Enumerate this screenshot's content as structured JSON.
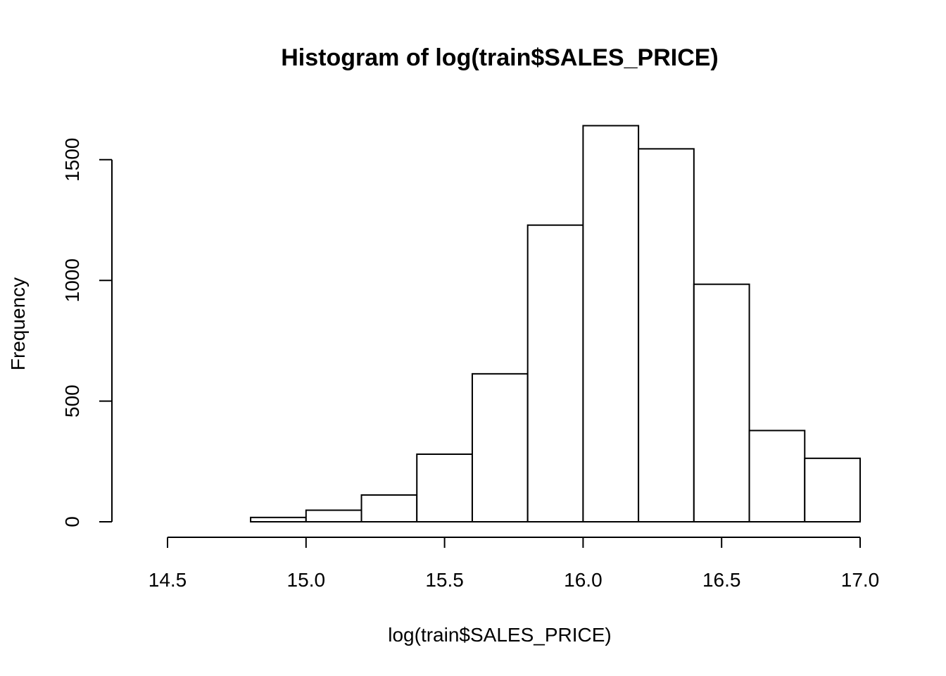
{
  "chart_data": {
    "type": "bar",
    "title": "Histogram of log(train$SALES_PRICE)",
    "xlabel": "log(train$SALES_PRICE)",
    "ylabel": "Frequency",
    "xlim": [
      14.4,
      17.0
    ],
    "ylim": [
      0,
      1640
    ],
    "x_ticks": [
      14.5,
      15.0,
      15.5,
      16.0,
      16.5,
      17.0
    ],
    "x_tick_labels": [
      "14.5",
      "15.0",
      "15.5",
      "16.0",
      "16.5",
      "17.0"
    ],
    "y_ticks": [
      0,
      500,
      1000,
      1500
    ],
    "y_tick_labels": [
      "0",
      "500",
      "1000",
      "1500"
    ],
    "bins": [
      {
        "start": 14.4,
        "end": 14.6,
        "value": 0
      },
      {
        "start": 14.6,
        "end": 14.8,
        "value": 0
      },
      {
        "start": 14.8,
        "end": 15.0,
        "value": 18
      },
      {
        "start": 15.0,
        "end": 15.2,
        "value": 48
      },
      {
        "start": 15.2,
        "end": 15.4,
        "value": 111
      },
      {
        "start": 15.4,
        "end": 15.6,
        "value": 280
      },
      {
        "start": 15.6,
        "end": 15.8,
        "value": 613
      },
      {
        "start": 15.8,
        "end": 16.0,
        "value": 1229
      },
      {
        "start": 16.0,
        "end": 16.2,
        "value": 1641
      },
      {
        "start": 16.2,
        "end": 16.4,
        "value": 1545
      },
      {
        "start": 16.4,
        "end": 16.6,
        "value": 984
      },
      {
        "start": 16.6,
        "end": 16.8,
        "value": 378
      },
      {
        "start": 16.8,
        "end": 17.0,
        "value": 263
      }
    ],
    "grid": false,
    "legend": "none"
  }
}
